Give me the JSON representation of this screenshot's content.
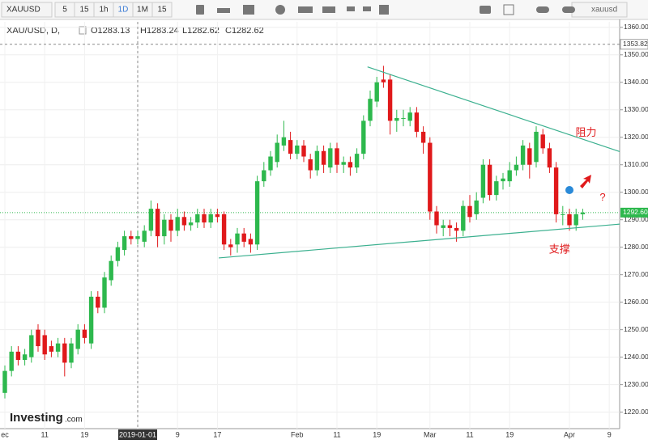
{
  "toolbar": {
    "symbol": "XAUUSD",
    "intervals": [
      "5",
      "15",
      "1h",
      "1D",
      "1M",
      "15"
    ],
    "search": "xauusd"
  },
  "legend": {
    "symbol": "XAU/USD, D,",
    "open": "O1283.13",
    "high": "H1283.24",
    "low": "L1282.62",
    "close": "C1282.62"
  },
  "logo": {
    "name": "Investing",
    "suffix": ".com"
  },
  "chart_data": {
    "type": "candlestick",
    "categories": [
      "ec",
      null,
      null,
      null,
      null,
      null,
      "11",
      null,
      null,
      null,
      null,
      null,
      "19",
      null,
      null,
      null,
      null,
      null,
      null,
      null,
      "2019-01-01",
      null,
      null,
      null,
      null,
      null,
      "9",
      null,
      null,
      null,
      null,
      null,
      "17",
      null,
      null,
      null,
      null,
      null,
      null,
      null,
      null,
      null,
      null,
      null,
      "Feb",
      null,
      null,
      null,
      null,
      null,
      "11",
      null,
      null,
      null,
      null,
      null,
      "19",
      null,
      null,
      null,
      null,
      null,
      null,
      null,
      "Mar",
      null,
      null,
      null,
      null,
      null,
      "11",
      null,
      null,
      null,
      null,
      null,
      "19",
      null,
      null,
      null,
      null,
      null,
      null,
      null,
      null,
      "Apr",
      null,
      null,
      null,
      null,
      null,
      "9"
    ],
    "open": [
      1227,
      1235,
      1242,
      1239,
      1240,
      1250,
      1248,
      1244,
      1242,
      1245,
      1238,
      1243,
      1250,
      1245,
      1262,
      1258,
      1268,
      1275,
      1279,
      1284,
      1283,
      1282,
      1286,
      1294,
      1284,
      1290,
      1286,
      1291,
      1288,
      1289,
      1292,
      1289,
      1292,
      1292,
      1281,
      1281,
      1285,
      1283,
      1281,
      1304,
      1308,
      1311,
      1317,
      1319,
      1314,
      1317,
      1312,
      1308,
      1315,
      1309,
      1316,
      1310,
      1311,
      1309,
      1314,
      1326,
      1333,
      1341,
      1341,
      1326,
      1327,
      1326,
      1329,
      1322,
      1318,
      1293,
      1287,
      1288,
      1287,
      1286,
      1295,
      1292,
      1298,
      1310,
      1299,
      1304,
      1304,
      1308,
      1310,
      1316,
      1311,
      1321,
      1316,
      1309,
      1292,
      1292,
      1288,
      1292,
      null,
      null,
      null,
      null
    ],
    "high": [
      1237,
      1244,
      1244,
      1243,
      1250,
      1252,
      1250,
      1246,
      1247,
      1247,
      1247,
      1252,
      1252,
      1264,
      1264,
      1271,
      1277,
      1282,
      1286,
      1286,
      1286,
      1288,
      1297,
      1296,
      1292,
      1292,
      1294,
      1293,
      1291,
      1294,
      1294,
      1294,
      1294,
      1293,
      1283,
      1287,
      1287,
      1285,
      1306,
      1311,
      1315,
      1321,
      1326,
      1322,
      1319,
      1319,
      1314,
      1317,
      1317,
      1318,
      1318,
      1313,
      1313,
      1316,
      1328,
      1337,
      1342,
      1346,
      1343,
      1330,
      1330,
      1331,
      1331,
      1324,
      1320,
      1295,
      1290,
      1290,
      1289,
      1297,
      1299,
      1300,
      1312,
      1312,
      1306,
      1307,
      1311,
      1313,
      1319,
      1318,
      1324,
      1323,
      1318,
      1311,
      1295,
      1294,
      1294,
      1294,
      null,
      null,
      null,
      null
    ],
    "low": [
      1225,
      1233,
      1237,
      1237,
      1238,
      1242,
      1239,
      1240,
      1240,
      1233,
      1236,
      1241,
      1245,
      1243,
      1256,
      1256,
      1266,
      1273,
      1277,
      1281,
      1281,
      1280,
      1284,
      1280,
      1281,
      1282,
      1284,
      1286,
      1286,
      1287,
      1287,
      1287,
      1289,
      1279,
      1277,
      1278,
      1280,
      1278,
      1279,
      1302,
      1306,
      1309,
      1315,
      1312,
      1312,
      1311,
      1305,
      1306,
      1307,
      1307,
      1307,
      1307,
      1306,
      1307,
      1312,
      1324,
      1331,
      1338,
      1321,
      1322,
      1324,
      1324,
      1320,
      1314,
      1290,
      1285,
      1284,
      1284,
      1282,
      1284,
      1289,
      1290,
      1296,
      1297,
      1297,
      1301,
      1302,
      1306,
      1308,
      1305,
      1309,
      1314,
      1307,
      1289,
      1288,
      1286,
      1286,
      1290,
      null,
      null,
      null,
      null
    ],
    "close": [
      1235,
      1242,
      1239,
      1241,
      1248,
      1244,
      1241,
      1242,
      1245,
      1238,
      1245,
      1250,
      1247,
      1262,
      1258,
      1269,
      1275,
      1280,
      1284,
      1283,
      1284,
      1286,
      1294,
      1284,
      1290,
      1286,
      1291,
      1288,
      1289,
      1292,
      1289,
      1292,
      1291,
      1281,
      1280,
      1285,
      1282,
      1281,
      1304,
      1308,
      1313,
      1318,
      1320,
      1314,
      1317,
      1313,
      1308,
      1315,
      1310,
      1316,
      1310,
      1311,
      1309,
      1314,
      1326,
      1334,
      1340,
      1340,
      1326,
      1327,
      1327,
      1329,
      1322,
      1318,
      1293,
      1288,
      1288,
      1287,
      1286,
      1295,
      1291,
      1297,
      1310,
      1299,
      1304,
      1305,
      1308,
      1310,
      1317,
      1310,
      1322,
      1316,
      1309,
      1292,
      1292,
      1288,
      1292,
      1292.6,
      null,
      null,
      null,
      null
    ],
    "up_color": "#2db84d",
    "down_color": "#e0191b",
    "ylim": [
      1214,
      1362
    ],
    "yticks": [
      {
        "value": 1220,
        "label": "1220.00"
      },
      {
        "value": 1230,
        "label": "1230.00"
      },
      {
        "value": 1240,
        "label": "1240.00"
      },
      {
        "value": 1250,
        "label": "1250.00"
      },
      {
        "value": 1260,
        "label": "1260.00"
      },
      {
        "value": 1270,
        "label": "1270.00"
      },
      {
        "value": 1280,
        "label": "1280.00"
      },
      {
        "value": 1290,
        "label": "1290.00"
      },
      {
        "value": 1300,
        "label": "1300.00"
      },
      {
        "value": 1310,
        "label": "1310.00"
      },
      {
        "value": 1320,
        "label": "1320.00"
      },
      {
        "value": 1330,
        "label": "1330.00"
      },
      {
        "value": 1340,
        "label": "1340.00"
      },
      {
        "value": 1350,
        "label": "1350.00"
      },
      {
        "value": 1360,
        "label": "1360.00"
      }
    ],
    "grid": true,
    "last_price": {
      "value": 1292.6,
      "label": "1292.60"
    },
    "crosshair": {
      "value": 1353.82,
      "label": "1353.82",
      "category": 20
    },
    "trendlines": [
      {
        "x": [
          54.6,
          92.6
        ],
        "y": [
          1345.6,
          1314.8
        ],
        "color": "#3bb08f"
      },
      {
        "x": [
          32.2,
          92.6
        ],
        "y": [
          1276.1,
          1288.4
        ],
        "color": "#3bb08f"
      }
    ],
    "annotations": [
      {
        "text": "阻力",
        "x": 87.5,
        "y": 1321.5,
        "color": "#e0191b"
      },
      {
        "text": "支撑",
        "x": 83.5,
        "y": 1279,
        "color": "#e0191b"
      },
      {
        "text": "?",
        "x": 90,
        "y": 1298,
        "color": "#e0191b"
      }
    ]
  }
}
